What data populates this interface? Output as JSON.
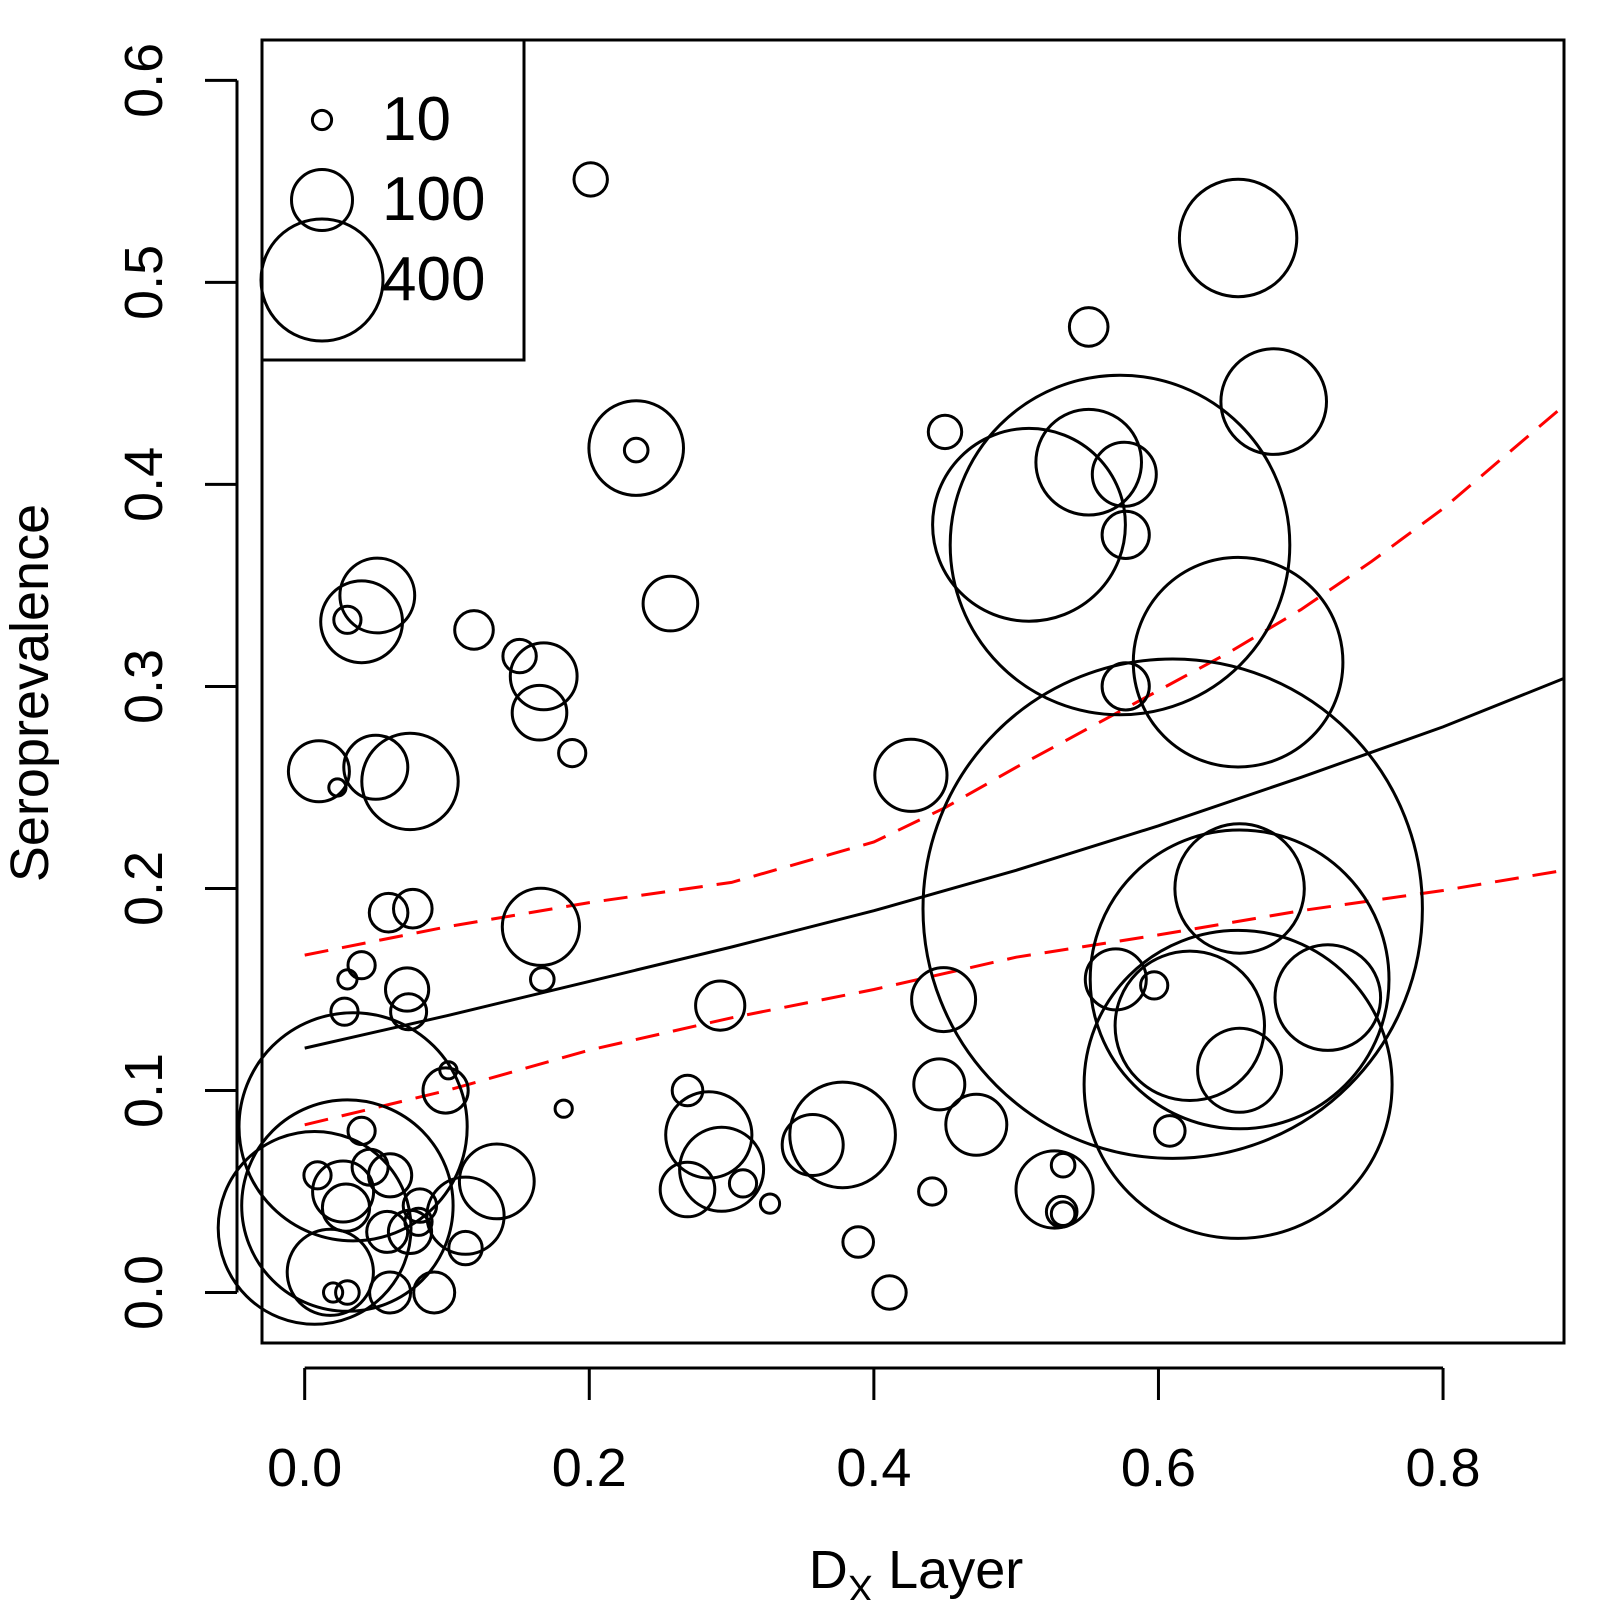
{
  "chart_data": {
    "type": "scatter",
    "title": "",
    "xlabel_main": "D",
    "xlabel_sub": "X",
    "xlabel_rest": " Layer",
    "ylabel": "Seroprevalence",
    "xlim": [
      -0.03,
      0.885
    ],
    "ylim": [
      -0.025,
      0.62
    ],
    "x_ticks": [
      0.0,
      0.2,
      0.4,
      0.6,
      0.8
    ],
    "x_tick_labels": [
      "0.0",
      "0.2",
      "0.4",
      "0.6",
      "0.8"
    ],
    "y_ticks": [
      0.0,
      0.1,
      0.2,
      0.3,
      0.4,
      0.5,
      0.6
    ],
    "y_tick_labels": [
      "0.0",
      "0.1",
      "0.2",
      "0.3",
      "0.4",
      "0.5",
      "0.6"
    ],
    "size_legend": {
      "placement": "top-left",
      "entries": [
        {
          "label": "10",
          "n": 10
        },
        {
          "label": "100",
          "n": 100
        },
        {
          "label": "400",
          "n": 400
        }
      ]
    },
    "points": [
      {
        "x": 0.01,
        "y": 0.258,
        "n": 100
      },
      {
        "x": 0.023,
        "y": 0.25,
        "n": 8
      },
      {
        "x": 0.03,
        "y": 0.333,
        "n": 20
      },
      {
        "x": 0.04,
        "y": 0.332,
        "n": 180
      },
      {
        "x": 0.051,
        "y": 0.345,
        "n": 150
      },
      {
        "x": 0.05,
        "y": 0.26,
        "n": 110
      },
      {
        "x": 0.074,
        "y": 0.253,
        "n": 250
      },
      {
        "x": 0.059,
        "y": 0.188,
        "n": 40
      },
      {
        "x": 0.076,
        "y": 0.19,
        "n": 40
      },
      {
        "x": 0.04,
        "y": 0.162,
        "n": 20
      },
      {
        "x": 0.03,
        "y": 0.155,
        "n": 10
      },
      {
        "x": 0.072,
        "y": 0.15,
        "n": 50
      },
      {
        "x": 0.028,
        "y": 0.139,
        "n": 20
      },
      {
        "x": 0.073,
        "y": 0.139,
        "n": 35
      },
      {
        "x": 0.101,
        "y": 0.11,
        "n": 8
      },
      {
        "x": 0.099,
        "y": 0.1,
        "n": 55
      },
      {
        "x": 0.04,
        "y": 0.08,
        "n": 20
      },
      {
        "x": 0.034,
        "y": 0.082,
        "n": 1400
      },
      {
        "x": 0.03,
        "y": 0.043,
        "n": 1200
      },
      {
        "x": 0.007,
        "y": 0.032,
        "n": 1000
      },
      {
        "x": 0.018,
        "y": 0.01,
        "n": 200
      },
      {
        "x": 0.027,
        "y": 0.05,
        "n": 100
      },
      {
        "x": 0.029,
        "y": 0.042,
        "n": 60
      },
      {
        "x": 0.046,
        "y": 0.062,
        "n": 35
      },
      {
        "x": 0.06,
        "y": 0.058,
        "n": 50
      },
      {
        "x": 0.009,
        "y": 0.058,
        "n": 20
      },
      {
        "x": 0.058,
        "y": 0.03,
        "n": 45
      },
      {
        "x": 0.074,
        "y": 0.03,
        "n": 50
      },
      {
        "x": 0.081,
        "y": 0.043,
        "n": 30
      },
      {
        "x": 0.08,
        "y": 0.035,
        "n": 20
      },
      {
        "x": 0.02,
        "y": 0.0,
        "n": 10
      },
      {
        "x": 0.03,
        "y": 0.0,
        "n": 15
      },
      {
        "x": 0.06,
        "y": 0.0,
        "n": 45
      },
      {
        "x": 0.091,
        "y": 0.0,
        "n": 45
      },
      {
        "x": 0.113,
        "y": 0.038,
        "n": 160
      },
      {
        "x": 0.135,
        "y": 0.055,
        "n": 150
      },
      {
        "x": 0.113,
        "y": 0.022,
        "n": 30
      },
      {
        "x": 0.119,
        "y": 0.328,
        "n": 40
      },
      {
        "x": 0.151,
        "y": 0.315,
        "n": 30
      },
      {
        "x": 0.168,
        "y": 0.305,
        "n": 120
      },
      {
        "x": 0.165,
        "y": 0.287,
        "n": 80
      },
      {
        "x": 0.166,
        "y": 0.181,
        "n": 160
      },
      {
        "x": 0.167,
        "y": 0.155,
        "n": 15
      },
      {
        "x": 0.188,
        "y": 0.267,
        "n": 20
      },
      {
        "x": 0.182,
        "y": 0.091,
        "n": 8
      },
      {
        "x": 0.201,
        "y": 0.551,
        "n": 30
      },
      {
        "x": 0.233,
        "y": 0.418,
        "n": 240
      },
      {
        "x": 0.233,
        "y": 0.417,
        "n": 15
      },
      {
        "x": 0.257,
        "y": 0.341,
        "n": 80
      },
      {
        "x": 0.269,
        "y": 0.1,
        "n": 25
      },
      {
        "x": 0.269,
        "y": 0.051,
        "n": 80
      },
      {
        "x": 0.284,
        "y": 0.078,
        "n": 200
      },
      {
        "x": 0.292,
        "y": 0.142,
        "n": 65
      },
      {
        "x": 0.293,
        "y": 0.061,
        "n": 190
      },
      {
        "x": 0.308,
        "y": 0.054,
        "n": 20
      },
      {
        "x": 0.327,
        "y": 0.044,
        "n": 10
      },
      {
        "x": 0.357,
        "y": 0.073,
        "n": 100
      },
      {
        "x": 0.378,
        "y": 0.078,
        "n": 300
      },
      {
        "x": 0.389,
        "y": 0.025,
        "n": 25
      },
      {
        "x": 0.411,
        "y": 0.0,
        "n": 30
      },
      {
        "x": 0.426,
        "y": 0.256,
        "n": 140
      },
      {
        "x": 0.45,
        "y": 0.426,
        "n": 30
      },
      {
        "x": 0.441,
        "y": 0.05,
        "n": 20
      },
      {
        "x": 0.446,
        "y": 0.103,
        "n": 70
      },
      {
        "x": 0.449,
        "y": 0.145,
        "n": 110
      },
      {
        "x": 0.472,
        "y": 0.083,
        "n": 100
      },
      {
        "x": 0.509,
        "y": 0.38,
        "n": 1000
      },
      {
        "x": 0.551,
        "y": 0.411,
        "n": 300
      },
      {
        "x": 0.551,
        "y": 0.478,
        "n": 40
      },
      {
        "x": 0.573,
        "y": 0.37,
        "n": 3100
      },
      {
        "x": 0.576,
        "y": 0.405,
        "n": 110
      },
      {
        "x": 0.577,
        "y": 0.375,
        "n": 60
      },
      {
        "x": 0.577,
        "y": 0.3,
        "n": 60
      },
      {
        "x": 0.57,
        "y": 0.155,
        "n": 100
      },
      {
        "x": 0.597,
        "y": 0.152,
        "n": 20
      },
      {
        "x": 0.533,
        "y": 0.063,
        "n": 15
      },
      {
        "x": 0.527,
        "y": 0.051,
        "n": 160
      },
      {
        "x": 0.532,
        "y": 0.04,
        "n": 25
      },
      {
        "x": 0.533,
        "y": 0.039,
        "n": 15
      },
      {
        "x": 0.608,
        "y": 0.08,
        "n": 25
      },
      {
        "x": 0.61,
        "y": 0.19,
        "n": 6700
      },
      {
        "x": 0.622,
        "y": 0.132,
        "n": 600
      },
      {
        "x": 0.656,
        "y": 0.103,
        "n": 2550
      },
      {
        "x": 0.657,
        "y": 0.155,
        "n": 2400
      },
      {
        "x": 0.657,
        "y": 0.2,
        "n": 450
      },
      {
        "x": 0.657,
        "y": 0.11,
        "n": 190
      },
      {
        "x": 0.656,
        "y": 0.312,
        "n": 1180
      },
      {
        "x": 0.656,
        "y": 0.522,
        "n": 370
      },
      {
        "x": 0.681,
        "y": 0.441,
        "n": 300
      },
      {
        "x": 0.719,
        "y": 0.146,
        "n": 300
      }
    ],
    "series": [
      {
        "style": "solid",
        "color": "#000000",
        "x": [
          0.0,
          0.1,
          0.2,
          0.3,
          0.4,
          0.5,
          0.6,
          0.7,
          0.8,
          0.885
        ],
        "y": [
          0.121,
          0.137,
          0.154,
          0.171,
          0.189,
          0.209,
          0.231,
          0.255,
          0.28,
          0.304
        ]
      },
      {
        "style": "dashed",
        "color": "#ff0000",
        "x": [
          0.0,
          0.1,
          0.2,
          0.3,
          0.4,
          0.45,
          0.5,
          0.55,
          0.6,
          0.65,
          0.7,
          0.75,
          0.8,
          0.885
        ],
        "y": [
          0.167,
          0.181,
          0.193,
          0.203,
          0.223,
          0.24,
          0.26,
          0.279,
          0.298,
          0.317,
          0.338,
          0.362,
          0.388,
          0.439
        ]
      },
      {
        "style": "dashed",
        "color": "#ff0000",
        "x": [
          0.0,
          0.1,
          0.2,
          0.3,
          0.4,
          0.5,
          0.6,
          0.7,
          0.8,
          0.885
        ],
        "y": [
          0.083,
          0.1,
          0.12,
          0.136,
          0.15,
          0.166,
          0.177,
          0.189,
          0.199,
          0.209
        ]
      }
    ]
  }
}
